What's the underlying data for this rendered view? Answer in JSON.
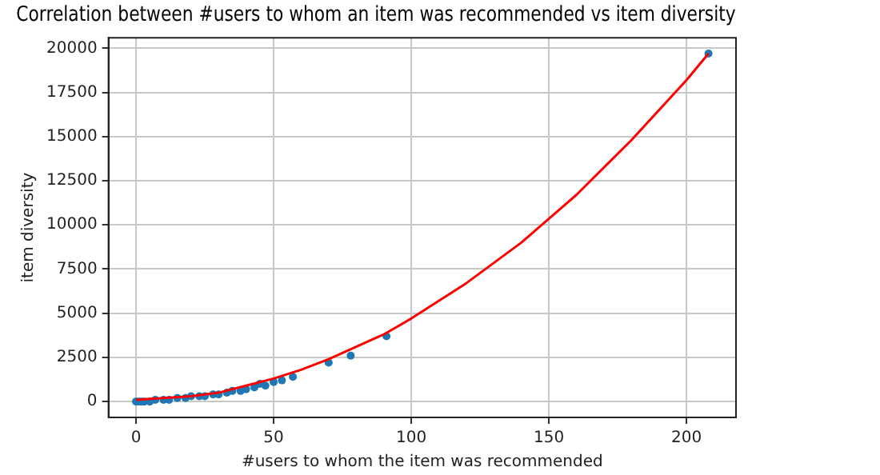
{
  "chart_data": {
    "type": "scatter",
    "title": "Correlation between #users to whom an item was recommended vs item diversity",
    "xlabel": "#users to whom the item was recommended",
    "ylabel": "item diversity",
    "xlim": [
      -10,
      218
    ],
    "xticks": [
      0,
      50,
      100,
      150,
      200
    ],
    "ylim": [
      -900,
      20600
    ],
    "yticks": [
      0,
      2500,
      5000,
      7500,
      10000,
      12500,
      15000,
      17500,
      20000
    ],
    "grid": true,
    "marker": "circle",
    "series": [
      {
        "color": "#1f77b4",
        "x": [
          0,
          1,
          2,
          3,
          5,
          7,
          10,
          12,
          15,
          18,
          20,
          23,
          25,
          28,
          30,
          33,
          35,
          38,
          40,
          43,
          45,
          47,
          50,
          53,
          57,
          70,
          78,
          91,
          208
        ],
        "values": [
          0,
          0,
          0,
          0,
          0,
          100,
          100,
          100,
          200,
          200,
          300,
          300,
          300,
          400,
          400,
          500,
          600,
          600,
          700,
          800,
          1000,
          900,
          1100,
          1200,
          1400,
          2200,
          2600,
          3700,
          19700
        ]
      },
      {
        "type": "line",
        "marker": "none",
        "color": "#ff0000",
        "x": [
          0,
          10,
          20,
          30,
          40,
          50,
          60,
          70,
          80,
          90,
          100,
          120,
          140,
          160,
          180,
          200,
          208
        ],
        "values": [
          100,
          200,
          300,
          500,
          900,
          1300,
          1800,
          2400,
          3100,
          3800,
          4700,
          6700,
          9000,
          11700,
          14800,
          18200,
          19700
        ]
      }
    ]
  }
}
